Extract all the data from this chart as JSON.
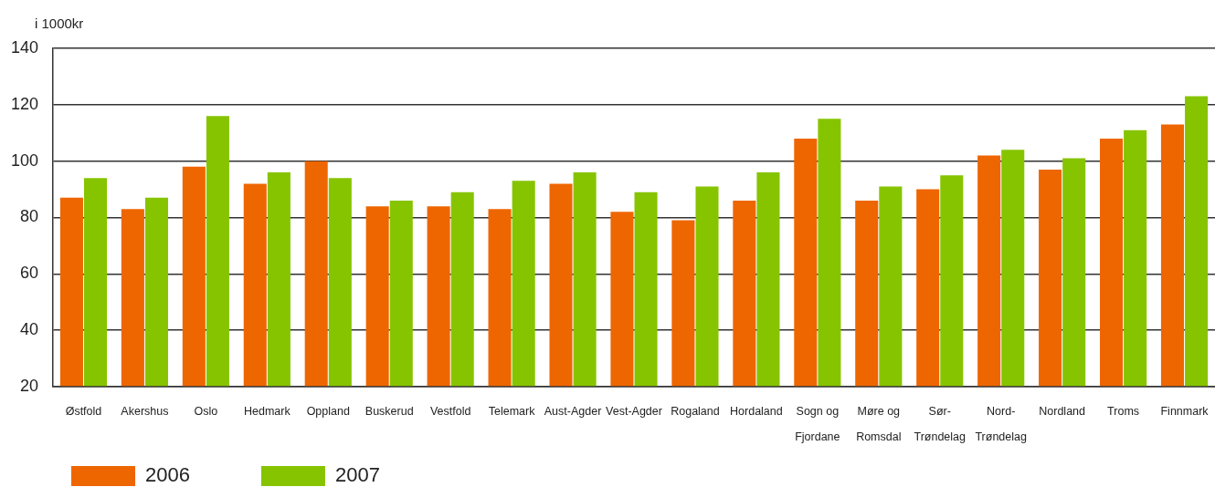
{
  "chart_data": {
    "type": "bar",
    "ylabel": "i 1000kr",
    "categories": [
      "Østfold",
      "Akershus",
      "Oslo",
      "Hedmark",
      "Oppland",
      "Buskerud",
      "Vestfold",
      "Telemark",
      "Aust-Agder",
      "Vest-Agder",
      "Rogaland",
      "Hordaland",
      "Sogn og Fjordane",
      "Møre og Romsdal",
      "Sør-Trøndelag",
      "Nord-Trøndelag",
      "Nordland",
      "Troms",
      "Finnmark"
    ],
    "series": [
      {
        "name": "2006",
        "color": "#ee6600",
        "values": [
          87,
          83,
          98,
          92,
          100,
          84,
          84,
          83,
          92,
          82,
          79,
          86,
          108,
          86,
          90,
          102,
          97,
          108,
          113
        ]
      },
      {
        "name": "2007",
        "color": "#86c400",
        "values": [
          94,
          87,
          116,
          96,
          94,
          86,
          89,
          93,
          96,
          89,
          91,
          96,
          115,
          91,
          95,
          104,
          101,
          111,
          123
        ]
      }
    ],
    "ylim": [
      20,
      140
    ],
    "yticks": [
      20,
      40,
      60,
      80,
      100,
      120,
      140
    ],
    "grid": "y",
    "legend": "bottom left"
  }
}
